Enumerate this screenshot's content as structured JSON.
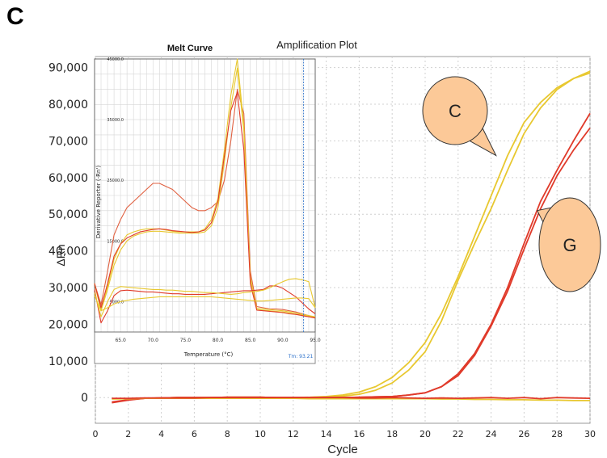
{
  "panel_label": "C",
  "chart_data": [
    {
      "type": "line",
      "title": "Amplification Plot",
      "xlabel": "Cycle",
      "ylabel": "ΔRn",
      "xlim": [
        0,
        30
      ],
      "ylim": [
        -7000,
        93000
      ],
      "x_ticks": [
        0,
        2,
        4,
        6,
        8,
        10,
        12,
        14,
        16,
        18,
        20,
        22,
        24,
        26,
        28,
        30
      ],
      "y_ticks": [
        0,
        10000,
        20000,
        30000,
        40000,
        50000,
        60000,
        70000,
        80000,
        90000
      ],
      "y_tick_labels": [
        "0",
        "10,000",
        "20,000",
        "30,000",
        "40,000",
        "50,000",
        "60,000",
        "70,000",
        "80,000",
        "90,000"
      ],
      "grid": true,
      "x": [
        1,
        2,
        3,
        4,
        5,
        6,
        7,
        8,
        9,
        10,
        11,
        12,
        13,
        14,
        15,
        16,
        17,
        18,
        19,
        20,
        21,
        22,
        23,
        24,
        25,
        26,
        27,
        28,
        29,
        30
      ],
      "series": [
        {
          "color": "#e8c830",
          "values": [
            -300,
            -300,
            -200,
            -100,
            0,
            0,
            0,
            100,
            100,
            100,
            0,
            0,
            100,
            300,
            700,
            1500,
            3000,
            5500,
            9500,
            15000,
            23000,
            33000,
            44000,
            55000,
            66000,
            75000,
            80500,
            84500,
            87000,
            89000
          ]
        },
        {
          "color": "#e8c830",
          "values": [
            -400,
            -300,
            -200,
            -100,
            0,
            0,
            0,
            100,
            100,
            100,
            0,
            0,
            50,
            200,
            400,
            900,
            2000,
            4000,
            7500,
            12500,
            21000,
            32000,
            42000,
            51500,
            62000,
            72000,
            79000,
            84000,
            87000,
            88500
          ]
        },
        {
          "color": "#e03a2a",
          "values": [
            -1200,
            -600,
            -200,
            -100,
            0,
            0,
            0,
            100,
            100,
            100,
            0,
            0,
            0,
            0,
            0,
            100,
            200,
            300,
            700,
            1300,
            3000,
            6500,
            12000,
            20000,
            30000,
            42000,
            53500,
            62000,
            70000,
            77500
          ]
        },
        {
          "color": "#e03a2a",
          "values": [
            -1400,
            -700,
            -200,
            -100,
            0,
            0,
            0,
            100,
            100,
            100,
            0,
            0,
            0,
            0,
            0,
            100,
            200,
            300,
            700,
            1300,
            3000,
            6000,
            11500,
            19500,
            29000,
            40500,
            51500,
            60500,
            67500,
            73500
          ]
        },
        {
          "color": "#e8c830",
          "values": [
            -300,
            -300,
            -200,
            -200,
            -200,
            -200,
            -200,
            -200,
            -200,
            -200,
            -200,
            -200,
            -300,
            -300,
            -300,
            -300,
            -300,
            -300,
            -300,
            -300,
            -400,
            -400,
            -500,
            -500,
            -600,
            -600,
            -700,
            -700,
            -800,
            -800
          ]
        },
        {
          "color": "#e03a2a",
          "values": [
            -200,
            -200,
            -100,
            -100,
            -100,
            -100,
            0,
            0,
            0,
            0,
            0,
            0,
            0,
            0,
            0,
            -100,
            -100,
            0,
            -100,
            -200,
            -100,
            -200,
            -100,
            0,
            -200,
            0,
            -300,
            0,
            -100,
            -200
          ]
        }
      ],
      "callouts": [
        {
          "text": "C",
          "color": "#fcc998",
          "target": [
            24.3,
            66000
          ]
        },
        {
          "text": "G",
          "color": "#fcc998",
          "target": [
            26.8,
            51000
          ]
        }
      ]
    },
    {
      "type": "line",
      "title": "Melt Curve",
      "xlabel": "Temperature (°C)",
      "ylabel": "Derivative Reporter (-Rn')",
      "xlim": [
        61,
        95
      ],
      "ylim": [
        0,
        45000
      ],
      "x_ticks": [
        65,
        70,
        75,
        80,
        85,
        90,
        95
      ],
      "x_tick_labels": [
        "65.0",
        "70.0",
        "75.0",
        "80.0",
        "85.0",
        "90.0",
        "95.0"
      ],
      "y_ticks": [
        5000,
        15000,
        25000,
        35000,
        45000
      ],
      "y_tick_labels": [
        "5000.0",
        "15000.0",
        "25000.0",
        "35000.0",
        "45000.0"
      ],
      "grid": true,
      "tm_marker": {
        "x": 93.21,
        "label": "Tm: 93.21"
      },
      "x": [
        61,
        62,
        63,
        64,
        65,
        66,
        67,
        68,
        69,
        70,
        71,
        72,
        73,
        74,
        75,
        76,
        77,
        78,
        79,
        80,
        81,
        82,
        83,
        84,
        85,
        86,
        87,
        88,
        89,
        90,
        91,
        92,
        93,
        94,
        95
      ],
      "series": [
        {
          "color": "#e06040",
          "values": [
            8000,
            4500,
            10000,
            16000,
            18500,
            20500,
            21500,
            22500,
            23500,
            24500,
            24500,
            24000,
            23500,
            22500,
            21500,
            20500,
            20000,
            20000,
            20500,
            21500,
            25000,
            31500,
            40000,
            36000,
            10000,
            4200,
            4000,
            3800,
            3800,
            3700,
            3500,
            3300,
            3000,
            2700,
            2300
          ]
        },
        {
          "color": "#e8c830",
          "values": [
            8000,
            3500,
            7500,
            12000,
            14500,
            16000,
            16500,
            16800,
            17000,
            17000,
            17000,
            16800,
            16600,
            16500,
            16500,
            16500,
            16500,
            17000,
            18500,
            22000,
            30000,
            39000,
            45000,
            34000,
            9000,
            3900,
            3800,
            3700,
            3600,
            3500,
            3300,
            3100,
            2900,
            2700,
            2500
          ]
        },
        {
          "color": "#e8c830",
          "values": [
            8000,
            3500,
            7000,
            11000,
            13500,
            15000,
            15800,
            16200,
            16500,
            16600,
            16600,
            16500,
            16400,
            16300,
            16300,
            16300,
            16300,
            16500,
            17500,
            20500,
            28000,
            37000,
            43500,
            33000,
            8500,
            3700,
            3600,
            3500,
            3400,
            3300,
            3100,
            2900,
            2800,
            2600,
            2500
          ]
        },
        {
          "color": "#e03a2a",
          "values": [
            8000,
            4000,
            8000,
            12500,
            14500,
            15500,
            16000,
            16500,
            16700,
            16900,
            17000,
            16900,
            16700,
            16600,
            16500,
            16400,
            16500,
            16800,
            18000,
            21500,
            29000,
            36500,
            39500,
            30000,
            8000,
            3600,
            3500,
            3400,
            3300,
            3200,
            3000,
            2900,
            2700,
            2500,
            2300
          ]
        },
        {
          "color": "#e03a2a",
          "values": [
            7000,
            1500,
            3500,
            6000,
            6800,
            6900,
            6800,
            6700,
            6600,
            6600,
            6500,
            6400,
            6300,
            6300,
            6200,
            6200,
            6200,
            6200,
            6300,
            6400,
            6500,
            6600,
            6700,
            6800,
            6800,
            6900,
            7000,
            7600,
            7600,
            7200,
            6500,
            5800,
            4800,
            3800,
            3000
          ]
        },
        {
          "color": "#e8c830",
          "values": [
            6500,
            2500,
            5000,
            7000,
            7500,
            7400,
            7300,
            7200,
            7100,
            7000,
            7000,
            6900,
            6900,
            6800,
            6700,
            6700,
            6600,
            6500,
            6500,
            6400,
            6300,
            6200,
            6300,
            6500,
            6600,
            6700,
            6900,
            7300,
            7800,
            8300,
            8700,
            8800,
            8600,
            8300,
            4000
          ]
        },
        {
          "color": "#e8c830",
          "values": [
            6000,
            3500,
            4000,
            4600,
            5000,
            5200,
            5400,
            5500,
            5600,
            5700,
            5800,
            5800,
            5800,
            5800,
            5800,
            5800,
            5800,
            5800,
            5800,
            5700,
            5600,
            5500,
            5400,
            5300,
            5200,
            5100,
            5100,
            5200,
            5300,
            5400,
            5500,
            5600,
            5600,
            5500,
            4000
          ]
        }
      ]
    }
  ]
}
